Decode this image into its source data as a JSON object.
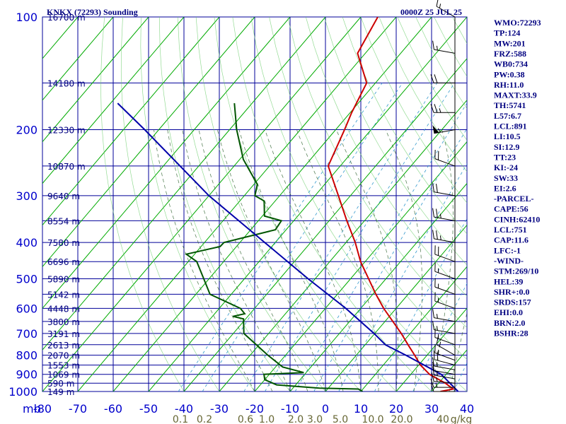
{
  "header": {
    "station": "KNKX (72293) Sounding",
    "time": "0000Z 25 JUL 25"
  },
  "indices": [
    "WMO:72293",
    "TP:124",
    "MW:201",
    "FRZ:588",
    "WB0:734",
    "PW:0.38",
    "RH:11.0",
    "MAXT:33.9",
    "TH:5741",
    "L57:6.7",
    "LCL:891",
    "LI:10.5",
    "SI:12.9",
    "TT:23",
    "KI:-24",
    "SW:33",
    "EI:2.6",
    "-PARCEL-",
    "CAPE:56",
    "CINH:62410",
    "LCL:751",
    "CAP:11.6",
    "LFC:-1",
    "-WIND-",
    "STM:269/10",
    "HEL:39",
    "SHR+:0.0",
    "SRDS:157",
    "EHI:0.0",
    "BRN:2.0",
    "BSHR:28"
  ],
  "colors": {
    "grid": "#000099",
    "temperature": "#cc0000",
    "dewpoint": "#005500",
    "parcel": "#0000aa",
    "dry_adiabat": "#00aa00",
    "mixing_ratio": "#3399cc",
    "moist_adiabat": "#336633",
    "wind_barb": "#000000"
  },
  "chart_data": {
    "type": "line",
    "title": "KNKX (72293) Sounding",
    "pressure_axis_unit": "mb",
    "pressure_levels": [
      100,
      200,
      300,
      400,
      500,
      600,
      700,
      800,
      900,
      1000
    ],
    "pressure_tick_labels": [
      "100",
      "200",
      "300",
      "400",
      "500",
      "600",
      "700",
      "800",
      "900",
      "1000"
    ],
    "ylim_mb": [
      100,
      1000
    ],
    "temperature_ticks": [
      -80,
      -70,
      -60,
      -50,
      -40,
      -30,
      -20,
      -10,
      0,
      10,
      20,
      30,
      40
    ],
    "temperature_tick_labels": [
      "-80",
      "-70",
      "-60",
      "-50",
      "-40",
      "-30",
      "-20",
      "-10",
      "0",
      "10",
      "20",
      "30",
      "40"
    ],
    "xlim_temp_c": [
      -80,
      40
    ],
    "skew_c_per_unit": 90,
    "height_labels": [
      {
        "p": 100,
        "text": "16700 m"
      },
      {
        "p": 150,
        "text": "14180 m"
      },
      {
        "p": 200,
        "text": "12330 m"
      },
      {
        "p": 250,
        "text": "10870 m"
      },
      {
        "p": 300,
        "text": "9640 m"
      },
      {
        "p": 350,
        "text": "8554 m"
      },
      {
        "p": 400,
        "text": "7580 m"
      },
      {
        "p": 450,
        "text": "6696 m"
      },
      {
        "p": 500,
        "text": "5890 m"
      },
      {
        "p": 550,
        "text": "5142 m"
      },
      {
        "p": 600,
        "text": "4448 m"
      },
      {
        "p": 650,
        "text": "3800 m"
      },
      {
        "p": 700,
        "text": "3191 m"
      },
      {
        "p": 750,
        "text": "2613 m"
      },
      {
        "p": 800,
        "text": "2070 m"
      },
      {
        "p": 850,
        "text": "1553 m"
      },
      {
        "p": 900,
        "text": "1069 m"
      },
      {
        "p": 950,
        "text": "590 m"
      },
      {
        "p": 1000,
        "text": "149 m"
      }
    ],
    "mixing_ratio_labels": [
      "0.1",
      "0.2",
      "0.6",
      "1.0",
      "2.0",
      "3.0",
      "5.0",
      "10.0",
      "20.0",
      "40",
      "g/kg"
    ],
    "series": [
      {
        "name": "temperature",
        "points": [
          {
            "p": 1000,
            "t": 32.5
          },
          {
            "p": 985,
            "t": 35.5
          },
          {
            "p": 950,
            "t": 31.9
          },
          {
            "p": 900,
            "t": 25.3
          },
          {
            "p": 850,
            "t": 20.5
          },
          {
            "p": 800,
            "t": 16.5
          },
          {
            "p": 750,
            "t": 12.1
          },
          {
            "p": 700,
            "t": 7.5
          },
          {
            "p": 650,
            "t": 2.2
          },
          {
            "p": 600,
            "t": -3.5
          },
          {
            "p": 550,
            "t": -9.1
          },
          {
            "p": 500,
            "t": -14.9
          },
          {
            "p": 450,
            "t": -21.3
          },
          {
            "p": 400,
            "t": -27.4
          },
          {
            "p": 350,
            "t": -35.0
          },
          {
            "p": 300,
            "t": -43.4
          },
          {
            "p": 250,
            "t": -53.4
          },
          {
            "p": 200,
            "t": -57.5
          },
          {
            "p": 180,
            "t": -59.6
          },
          {
            "p": 150,
            "t": -62.5
          },
          {
            "p": 125,
            "t": -72.2
          },
          {
            "p": 100,
            "t": -75.2
          }
        ]
      },
      {
        "name": "dewpoint",
        "points": [
          {
            "p": 1000,
            "t": 10.5
          },
          {
            "p": 985,
            "t": 8.7
          },
          {
            "p": 980,
            "t": -2.5
          },
          {
            "p": 960,
            "t": -15.4
          },
          {
            "p": 930,
            "t": -20.0
          },
          {
            "p": 900,
            "t": -21.5
          },
          {
            "p": 890,
            "t": -10.7
          },
          {
            "p": 860,
            "t": -18.0
          },
          {
            "p": 800,
            "t": -25.0
          },
          {
            "p": 700,
            "t": -37.0
          },
          {
            "p": 640,
            "t": -40.6
          },
          {
            "p": 630,
            "t": -44.2
          },
          {
            "p": 620,
            "t": -41.5
          },
          {
            "p": 600,
            "t": -44.0
          },
          {
            "p": 550,
            "t": -56.0
          },
          {
            "p": 500,
            "t": -61.5
          },
          {
            "p": 450,
            "t": -67.6
          },
          {
            "p": 430,
            "t": -72.3
          },
          {
            "p": 410,
            "t": -64.6
          },
          {
            "p": 400,
            "t": -64.5
          },
          {
            "p": 370,
            "t": -53.0
          },
          {
            "p": 350,
            "t": -53.5
          },
          {
            "p": 340,
            "t": -59.4
          },
          {
            "p": 310,
            "t": -63.1
          },
          {
            "p": 300,
            "t": -67.0
          },
          {
            "p": 280,
            "t": -69.0
          },
          {
            "p": 240,
            "t": -79.0
          },
          {
            "p": 200,
            "t": -88.0
          },
          {
            "p": 170,
            "t": -95.0
          }
        ]
      },
      {
        "name": "parcel",
        "points": [
          {
            "p": 1000,
            "t": 37.5
          },
          {
            "p": 900,
            "t": 28.6
          },
          {
            "p": 800,
            "t": 14.0
          },
          {
            "p": 751,
            "t": 5.8
          },
          {
            "p": 700,
            "t": -0.2
          },
          {
            "p": 600,
            "t": -14.2
          },
          {
            "p": 500,
            "t": -32.0
          },
          {
            "p": 400,
            "t": -53.0
          },
          {
            "p": 300,
            "t": -80.0
          },
          {
            "p": 200,
            "t": -114.0
          },
          {
            "p": 170,
            "t": -128.0
          }
        ]
      }
    ],
    "wind_barbs": [
      {
        "p": 1000,
        "dir": 270,
        "spd": 10
      },
      {
        "p": 975,
        "dir": 270,
        "spd": 15
      },
      {
        "p": 950,
        "dir": 275,
        "spd": 15
      },
      {
        "p": 925,
        "dir": 280,
        "spd": 15
      },
      {
        "p": 900,
        "dir": 280,
        "spd": 10
      },
      {
        "p": 875,
        "dir": 280,
        "spd": 15
      },
      {
        "p": 850,
        "dir": 285,
        "spd": 20
      },
      {
        "p": 825,
        "dir": 290,
        "spd": 15
      },
      {
        "p": 800,
        "dir": 300,
        "spd": 15
      },
      {
        "p": 750,
        "dir": 290,
        "spd": 15
      },
      {
        "p": 700,
        "dir": 280,
        "spd": 15
      },
      {
        "p": 650,
        "dir": 280,
        "spd": 15
      },
      {
        "p": 600,
        "dir": 290,
        "spd": 15
      },
      {
        "p": 550,
        "dir": 290,
        "spd": 15
      },
      {
        "p": 500,
        "dir": 290,
        "spd": 15
      },
      {
        "p": 450,
        "dir": 290,
        "spd": 20
      },
      {
        "p": 400,
        "dir": 280,
        "spd": 25
      },
      {
        "p": 350,
        "dir": 280,
        "spd": 25
      },
      {
        "p": 300,
        "dir": 280,
        "spd": 20
      },
      {
        "p": 250,
        "dir": 290,
        "spd": 20
      },
      {
        "p": 200,
        "dir": 260,
        "spd": 55
      },
      {
        "p": 180,
        "dir": 270,
        "spd": 25
      },
      {
        "p": 150,
        "dir": 270,
        "spd": 20
      },
      {
        "p": 125,
        "dir": 280,
        "spd": 15
      },
      {
        "p": 100,
        "dir": 300,
        "spd": 15
      }
    ]
  }
}
